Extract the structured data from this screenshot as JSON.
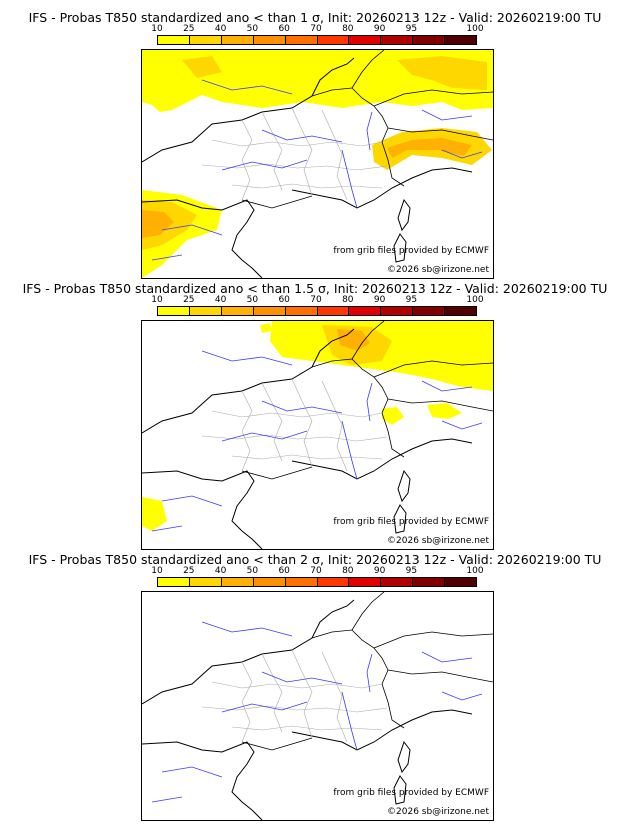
{
  "legend": {
    "labels": [
      "10",
      "25",
      "40",
      "50",
      "60",
      "70",
      "80",
      "90",
      "95",
      "100"
    ],
    "colors": [
      "#ffff00",
      "#ffd700",
      "#ffb000",
      "#ff9000",
      "#ff7000",
      "#ff3800",
      "#e00000",
      "#b00000",
      "#800000",
      "#500000"
    ]
  },
  "panels": [
    {
      "title": "IFS - Probas T850  standardized ano < than 1 σ, Init: 20260213 12z - Valid: 20260219:00 TU",
      "credit_source": "from grib files provided by ECMWF",
      "credit_copyright": "©2026 sb@irizone.net"
    },
    {
      "title": "IFS - Probas T850  standardized ano < than 1.5 σ, Init: 20260213 12z - Valid: 20260219:00 TU",
      "credit_source": "from grib files provided by ECMWF",
      "credit_copyright": "©2026 sb@irizone.net"
    },
    {
      "title": "IFS - Probas T850  standardized ano < than 2 σ, Init: 20260213 12z - Valid: 20260219:00 TU",
      "credit_source": "from grib files provided by ECMWF",
      "credit_copyright": "©2026 sb@irizone.net"
    }
  ],
  "map_colors": {
    "coastline": "#000000",
    "rivers": "#3a3aff",
    "borders": "#999999",
    "prob_low": "#ffff00",
    "prob_mid": "#ffd700",
    "prob_high": "#ffb000",
    "prob_higher": "#ff9000"
  }
}
